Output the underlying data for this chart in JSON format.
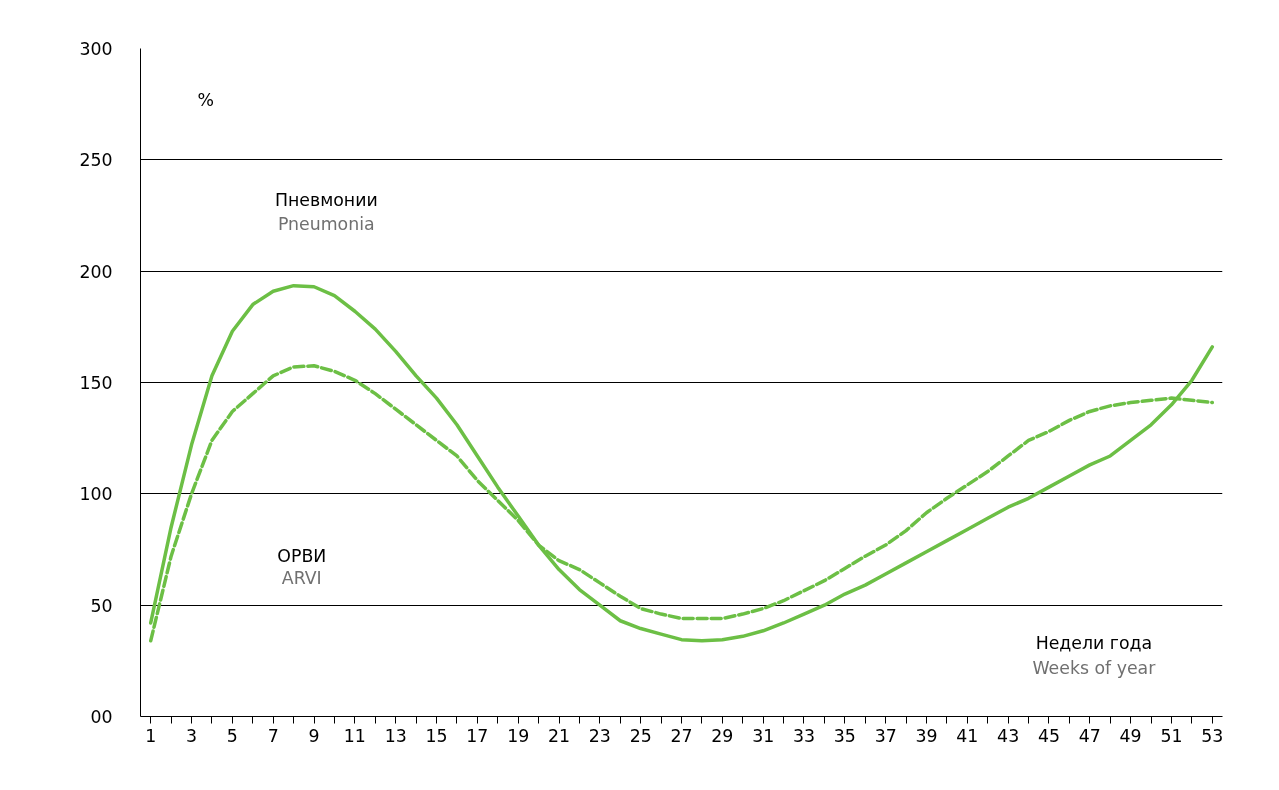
{
  "chart_data": {
    "type": "line",
    "ylabel": "%",
    "annotations": [
      "Пневмонии",
      "Pneumonia",
      "ОРВИ",
      "ARVI",
      "Недели года",
      "Weeks of year"
    ],
    "x": [
      1,
      2,
      3,
      4,
      5,
      6,
      7,
      8,
      9,
      10,
      11,
      12,
      13,
      14,
      15,
      16,
      17,
      18,
      19,
      20,
      21,
      22,
      23,
      24,
      25,
      26,
      27,
      28,
      29,
      30,
      31,
      32,
      33,
      34,
      35,
      36,
      37,
      38,
      39,
      40,
      41,
      42,
      43,
      44,
      45,
      46,
      47,
      48,
      49,
      50,
      51,
      52,
      53
    ],
    "series": [
      {
        "color": "#6cbf45",
        "line_style": "solid",
        "values": [
          42,
          85,
          122,
          153,
          173,
          185,
          191,
          193.5,
          193,
          189,
          182,
          174,
          164,
          153,
          143,
          131,
          117,
          103,
          90,
          77,
          66,
          57,
          50,
          43,
          39.5,
          37,
          34.5,
          34,
          34.5,
          36,
          38.5,
          42,
          46,
          50,
          55,
          59,
          64,
          69,
          74,
          79,
          84,
          89,
          94,
          98,
          103,
          108,
          113,
          117,
          124,
          131,
          140,
          151,
          166
        ]
      },
      {
        "color": "#6cbf45",
        "line_style": "dashed",
        "values": [
          34,
          72,
          100,
          124,
          137,
          145,
          153,
          157,
          157.5,
          155,
          151,
          145,
          138,
          131,
          124,
          117,
          106,
          97,
          88,
          77,
          70,
          66,
          60,
          54,
          48.5,
          46,
          44,
          44,
          44,
          46,
          48.5,
          52,
          56.5,
          61,
          66.5,
          72,
          77,
          83.5,
          91.5,
          98,
          104,
          110,
          117,
          124,
          128,
          133,
          137,
          139.5,
          141,
          142,
          143,
          142,
          141
        ]
      }
    ],
    "xlim": [
      0.5,
      53.5
    ],
    "ylim": [
      0,
      300
    ],
    "xticks": [
      1,
      {
        "value": 2,
        "label": null
      },
      3,
      {
        "value": 4,
        "label": null
      },
      5,
      {
        "value": 6,
        "label": null
      },
      7,
      {
        "value": 8,
        "label": null
      },
      9,
      {
        "value": 10,
        "label": null
      },
      11,
      {
        "value": 12,
        "label": null
      },
      13,
      {
        "value": 14,
        "label": null
      },
      15,
      {
        "value": 16,
        "label": null
      },
      17,
      {
        "value": 18,
        "label": null
      },
      19,
      {
        "value": 20,
        "label": null
      },
      21,
      {
        "value": 22,
        "label": null
      },
      23,
      {
        "value": 24,
        "label": null
      },
      25,
      {
        "value": 26,
        "label": null
      },
      27,
      {
        "value": 28,
        "label": null
      },
      29,
      {
        "value": 30,
        "label": null
      },
      31,
      {
        "value": 32,
        "label": null
      },
      33,
      {
        "value": 34,
        "label": null
      },
      35,
      {
        "value": 36,
        "label": null
      },
      37,
      {
        "value": 38,
        "label": null
      },
      39,
      {
        "value": 40,
        "label": null
      },
      41,
      {
        "value": 42,
        "label": null
      },
      43,
      {
        "value": 44,
        "label": null
      },
      45,
      {
        "value": 46,
        "label": null
      },
      47,
      {
        "value": 48,
        "label": null
      },
      49,
      {
        "value": 50,
        "label": null
      },
      51,
      {
        "value": 52,
        "label": null
      },
      53
    ],
    "yticks": [
      {
        "value": 0,
        "label": "00"
      },
      50,
      100,
      150,
      200,
      250,
      300
    ],
    "grid": "y"
  }
}
